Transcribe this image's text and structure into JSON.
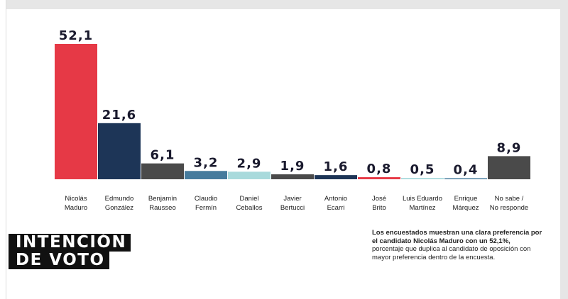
{
  "chart_data": {
    "type": "bar",
    "categories": [
      [
        "Nicolás",
        "Maduro"
      ],
      [
        "Edmundo",
        "González"
      ],
      [
        "Benjamín",
        "Rausseo"
      ],
      [
        "Claudio",
        "Fermín"
      ],
      [
        "Daniel",
        "Ceballos"
      ],
      [
        "Javier",
        "Bertucci"
      ],
      [
        "Antonio",
        "Ecarri"
      ],
      [
        "José",
        "Brito"
      ],
      [
        "Luis Eduardo",
        "Martínez"
      ],
      [
        "Enrique",
        "Márquez"
      ],
      [
        "No sabe /",
        "No responde"
      ]
    ],
    "values": [
      52.1,
      21.6,
      6.1,
      3.2,
      2.9,
      1.9,
      1.6,
      0.8,
      0.5,
      0.4,
      8.9
    ],
    "value_labels": [
      "52,1",
      "21,6",
      "6,1",
      "3,2",
      "2,9",
      "1,9",
      "1,6",
      "0,8",
      "0,5",
      "0,4",
      "8,9"
    ],
    "colors": [
      "#e63946",
      "#1d3557",
      "#4a4a4a",
      "#457b9d",
      "#a8dadc",
      "#4a4a4a",
      "#1d3557",
      "#e63946",
      "#a8dadc",
      "#457b9d",
      "#4a4a4a"
    ],
    "ylim": [
      0,
      52.1
    ],
    "grid": false,
    "legend": "none"
  },
  "title": {
    "line1": "INTENCIÓN",
    "line2": "DE VOTO"
  },
  "note": {
    "bold": "Los encuestados muestran una clara preferencia por el candidato Nicolás Maduro con un 52,1%,",
    "regular": "porcentaje que duplica al candidato de oposición con mayor preferencia dentro de la encuesta."
  }
}
